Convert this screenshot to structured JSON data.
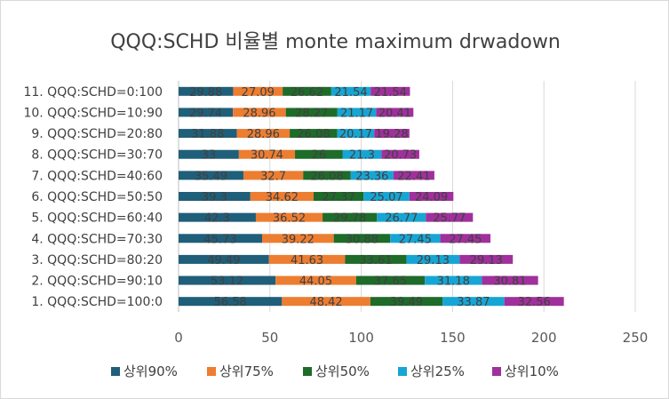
{
  "chart_data": {
    "type": "bar",
    "orientation": "horizontal",
    "stacked": true,
    "title": "QQQ:SCHD 비율별 monte maximum drwadown",
    "xlabel": "",
    "ylabel": "",
    "xlim": [
      0,
      250
    ],
    "x_ticks": [
      0,
      50,
      100,
      150,
      200,
      250
    ],
    "grid": true,
    "legend_position": "bottom",
    "categories": [
      "1. QQQ:SCHD=100:0",
      "2. QQQ:SCHD=90:10",
      "3. QQQ:SCHD=80:20",
      "4. QQQ:SCHD=70:30",
      "5. QQQ:SCHD=60:40",
      "6. QQQ:SCHD=50:50",
      "7. QQQ:SCHD=40:60",
      "8. QQQ:SCHD=30:70",
      "9. QQQ:SCHD=20:80",
      "10. QQQ:SCHD=10:90",
      "11. QQQ:SCHD=0:100"
    ],
    "series": [
      {
        "name": "상위90%",
        "color": "#1f5f7a",
        "values": [
          56.58,
          53.12,
          49.49,
          45.73,
          42.3,
          39.3,
          35.49,
          33,
          31.88,
          29.74,
          29.88
        ]
      },
      {
        "name": "상위75%",
        "color": "#ed7d31",
        "values": [
          48.42,
          44.05,
          41.63,
          39.22,
          36.52,
          34.62,
          32.7,
          30.74,
          28.96,
          28.96,
          27.09
        ]
      },
      {
        "name": "상위50%",
        "color": "#1e6b2a",
        "values": [
          39.49,
          37.65,
          33.61,
          30.88,
          29.78,
          27.37,
          26.08,
          26,
          26.08,
          28.27,
          26.62
        ]
      },
      {
        "name": "상위25%",
        "color": "#17a5d4",
        "values": [
          33.87,
          31.18,
          29.13,
          27.45,
          26.77,
          25.07,
          23.36,
          21.3,
          20.17,
          21.17,
          21.54
        ]
      },
      {
        "name": "상위10%",
        "color": "#a0309c",
        "values": [
          32.56,
          30.81,
          29.13,
          27.45,
          25.77,
          24.09,
          22.41,
          20.73,
          19.28,
          20.41,
          21.54
        ]
      }
    ]
  }
}
